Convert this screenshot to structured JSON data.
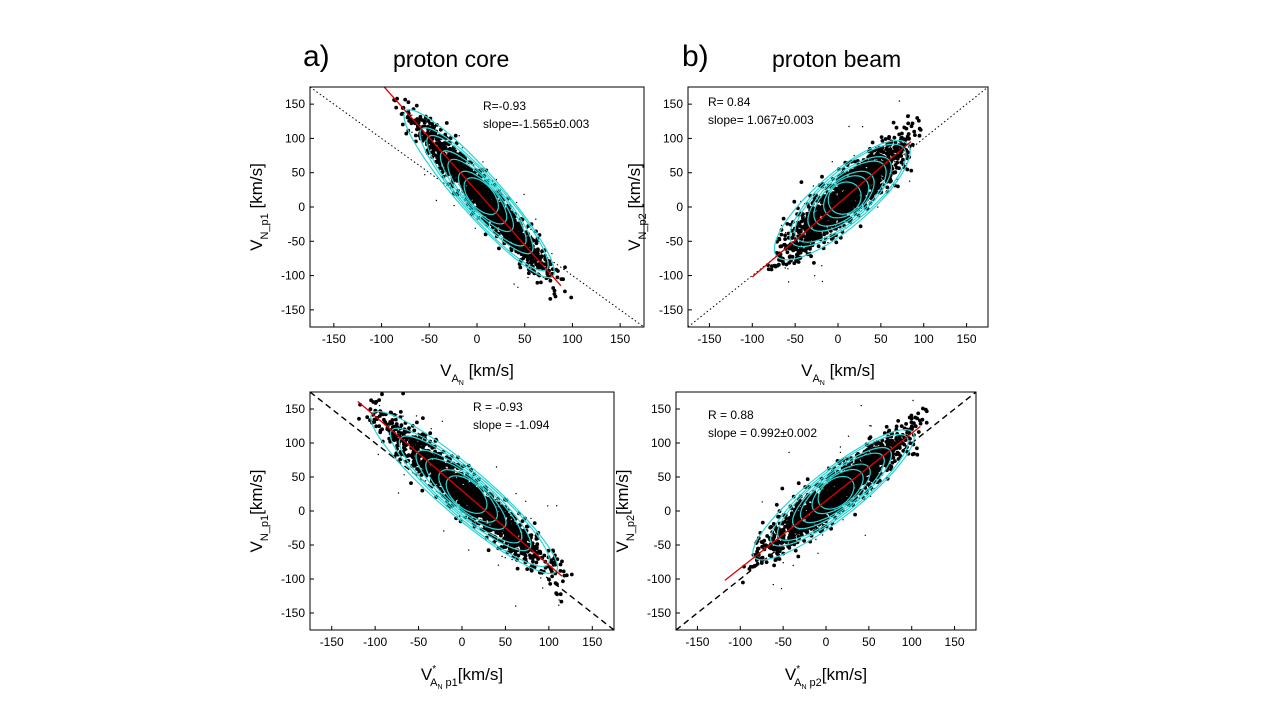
{
  "figure": {
    "panel_a": {
      "letter": "a)",
      "title": "proton core"
    },
    "panel_b": {
      "letter": "b)",
      "title": "proton beam"
    }
  },
  "colors": {
    "points": "#000000",
    "contour": "#2ad4d4",
    "fit": "#e00000",
    "reference": "#000000"
  },
  "chart_data": [
    {
      "type": "scatter",
      "id": "top-left",
      "xlabel": {
        "main": "V",
        "sub": "A",
        "subsub": "N",
        "tail": " [km/s]"
      },
      "ylabel": {
        "main": "V",
        "sub": "N_p1",
        "tail": " [km/s]"
      },
      "xlim": [
        -175,
        175
      ],
      "ylim": [
        -175,
        175
      ],
      "xticks": [
        -150,
        -100,
        -50,
        0,
        50,
        100,
        150
      ],
      "yticks": [
        -150,
        -100,
        -50,
        0,
        50,
        100,
        150
      ],
      "annotation": [
        "R=-0.93",
        "slope=-1.565±0.003"
      ],
      "reference_line": {
        "slope": -1,
        "style": "dotted"
      },
      "fit_line": {
        "slope": -1.565,
        "x_range": [
          -100,
          88
        ]
      },
      "cloud": {
        "center": [
          5,
          15
        ],
        "slope": -1.565,
        "x_range": [
          -72,
          82
        ],
        "spread": 14
      }
    },
    {
      "type": "scatter",
      "id": "top-right",
      "xlabel": {
        "main": "V",
        "sub": "A",
        "subsub": "N",
        "tail": " [km/s]"
      },
      "ylabel": {
        "main": "V",
        "sub": "N_p2",
        "tail": " [km/s]"
      },
      "xlim": [
        -175,
        175
      ],
      "ylim": [
        -175,
        175
      ],
      "xticks": [
        -150,
        -100,
        -50,
        0,
        50,
        100,
        150
      ],
      "yticks": [
        -150,
        -100,
        -50,
        0,
        50,
        100,
        150
      ],
      "annotation": [
        "R= 0.84",
        "slope= 1.067±0.003"
      ],
      "reference_line": {
        "slope": 1,
        "style": "dotted"
      },
      "fit_line": {
        "slope": 1.067,
        "x_range": [
          -100,
          85
        ]
      },
      "cloud": {
        "center": [
          5,
          10
        ],
        "slope": 1.067,
        "x_range": [
          -68,
          85
        ],
        "spread": 18
      }
    },
    {
      "type": "scatter",
      "id": "bottom-left",
      "xlabel": {
        "main": "V",
        "sup": "*",
        "sub": "A",
        "subsub": "N",
        "subtail": " p1",
        "tail": "[km/s]"
      },
      "ylabel": {
        "main": "V",
        "sub": "N_p1",
        "tail": "[km/s]"
      },
      "xlim": [
        -175,
        175
      ],
      "ylim": [
        -175,
        175
      ],
      "xticks": [
        -150,
        -100,
        -50,
        0,
        50,
        100,
        150
      ],
      "yticks": [
        -150,
        -100,
        -50,
        0,
        50,
        100,
        150
      ],
      "annotation": [
        "R = -0.93",
        "slope = -1.094"
      ],
      "reference_line": {
        "slope": -1,
        "style": "dashed"
      },
      "fit_line": {
        "slope": -1.094,
        "x_range": [
          -120,
          115
        ]
      },
      "cloud": {
        "center": [
          0,
          30
        ],
        "slope": -1.094,
        "x_range": [
          -100,
          112
        ],
        "spread": 16
      }
    },
    {
      "type": "scatter",
      "id": "bottom-right",
      "xlabel": {
        "main": "V",
        "sup": "*",
        "sub": "A",
        "subsub": "N",
        "subtail": " p2",
        "tail": "[km/s]"
      },
      "ylabel": {
        "main": "V",
        "sub": "N_p2",
        "tail": "[km/s]"
      },
      "xlim": [
        -175,
        175
      ],
      "ylim": [
        -175,
        175
      ],
      "xticks": [
        -150,
        -100,
        -50,
        0,
        50,
        100,
        150
      ],
      "yticks": [
        -150,
        -100,
        -50,
        0,
        50,
        100,
        150
      ],
      "annotation": [
        "R = 0.88",
        "slope = 0.992±0.002"
      ],
      "reference_line": {
        "slope": 1,
        "style": "dashed"
      },
      "fit_line": {
        "slope": 0.992,
        "x_range": [
          -118,
          110
        ]
      },
      "cloud": {
        "center": [
          10,
          25
        ],
        "slope": 0.992,
        "x_range": [
          -80,
          105
        ],
        "spread": 16
      }
    }
  ]
}
